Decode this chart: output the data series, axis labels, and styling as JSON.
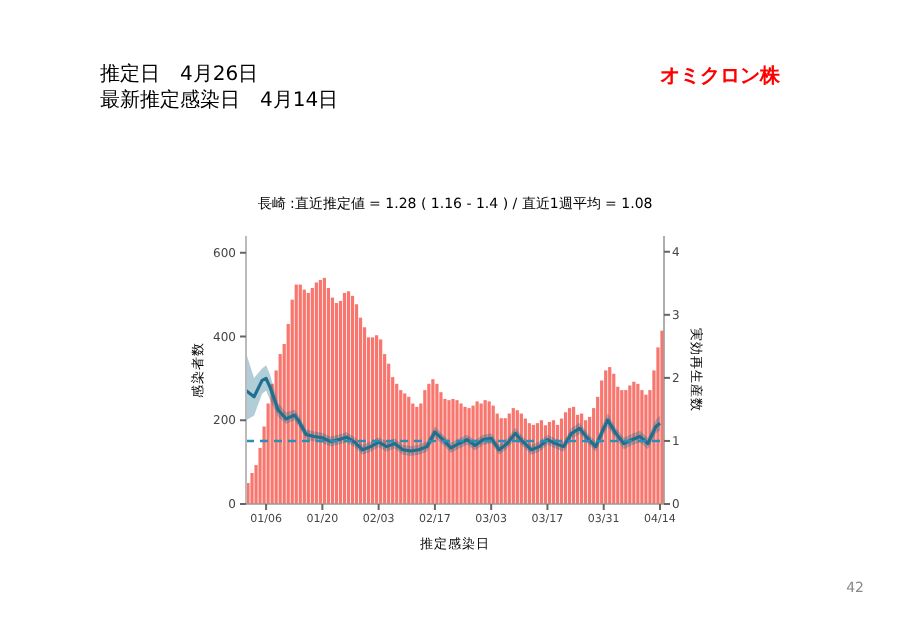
{
  "chart_data": {
    "type": "bar",
    "title": "長崎 :直近推定値 = 1.28 ( 1.16 - 1.4 ) / 直近1週平均 = 1.08",
    "annotations": [
      "推定日　4月26日",
      "最新推定感染日　4月14日",
      "オミクロン株",
      "42"
    ],
    "xlabel": "推定感染日",
    "ylabel": "感染者数",
    "y2label": "実効再生産数",
    "xlim": [
      "--01-01",
      "--04-15"
    ],
    "xticks": [
      {
        "value": "--01-06",
        "label": "01/06"
      },
      {
        "value": "--01-20",
        "label": "01/20"
      },
      {
        "value": "--02-03",
        "label": "02/03"
      },
      {
        "value": "--02-17",
        "label": "02/17"
      },
      {
        "value": "--03-03",
        "label": "03/03"
      },
      {
        "value": "--03-17",
        "label": "03/17"
      },
      {
        "value": "--03-31",
        "label": "03/31"
      },
      {
        "value": "--04-14",
        "label": "04/14"
      }
    ],
    "ylim": [
      0,
      640
    ],
    "yticks": [
      0,
      200,
      400,
      600
    ],
    "y2lim": [
      0,
      4.25
    ],
    "y2ticks": [
      0,
      1,
      2,
      3,
      4
    ],
    "grid": false,
    "ref_lines": [
      {
        "axis": "y2",
        "value": 1,
        "color": "#2a8fb5",
        "line_style": "dashed"
      }
    ],
    "series": [
      {
        "color": "#f8766d",
        "x": [
          "--01-01",
          "--01-02",
          "--01-03",
          "--01-04",
          "--01-05",
          "--01-06",
          "--01-07",
          "--01-08",
          "--01-09",
          "--01-10",
          "--01-11",
          "--01-12",
          "--01-13",
          "--01-14",
          "--01-15",
          "--01-16",
          "--01-17",
          "--01-18",
          "--01-19",
          "--01-20",
          "--01-21",
          "--01-22",
          "--01-23",
          "--01-24",
          "--01-25",
          "--01-26",
          "--01-27",
          "--01-28",
          "--01-29",
          "--01-30",
          "--01-31",
          "--02-01",
          "--02-02",
          "--02-03",
          "--02-04",
          "--02-05",
          "--02-06",
          "--02-07",
          "--02-08",
          "--02-09",
          "--02-10",
          "--02-11",
          "--02-12",
          "--02-13",
          "--02-14",
          "--02-15",
          "--02-16",
          "--02-17",
          "--02-18",
          "--02-19",
          "--02-20",
          "--02-21",
          "--02-22",
          "--02-23",
          "--02-24",
          "--02-25",
          "--02-26",
          "--02-27",
          "--02-28",
          "--03-01",
          "--03-02",
          "--03-03",
          "--03-04",
          "--03-05",
          "--03-06",
          "--03-07",
          "--03-08",
          "--03-09",
          "--03-10",
          "--03-11",
          "--03-12",
          "--03-13",
          "--03-14",
          "--03-15",
          "--03-16",
          "--03-17",
          "--03-18",
          "--03-19",
          "--03-20",
          "--03-21",
          "--03-22",
          "--03-23",
          "--03-24",
          "--03-25",
          "--03-26",
          "--03-27",
          "--03-28",
          "--03-29",
          "--03-30",
          "--03-31",
          "--04-01",
          "--04-02",
          "--04-03",
          "--04-04",
          "--04-05",
          "--04-06",
          "--04-07",
          "--04-08",
          "--04-09",
          "--04-10",
          "--04-11",
          "--04-12",
          "--04-13",
          "--04-14"
        ],
        "values": [
          50,
          74,
          93,
          134,
          185,
          240,
          287,
          319,
          358,
          382,
          430,
          488,
          524,
          524,
          512,
          504,
          516,
          529,
          535,
          540,
          516,
          493,
          480,
          485,
          504,
          508,
          497,
          477,
          445,
          422,
          398,
          398,
          403,
          393,
          358,
          335,
          303,
          287,
          272,
          264,
          256,
          240,
          232,
          240,
          272,
          287,
          298,
          287,
          267,
          251,
          248,
          251,
          248,
          240,
          232,
          229,
          235,
          245,
          240,
          248,
          245,
          235,
          216,
          205,
          205,
          216,
          229,
          224,
          216,
          204,
          193,
          189,
          193,
          200,
          188,
          196,
          200,
          189,
          204,
          219,
          229,
          232,
          213,
          216,
          200,
          208,
          229,
          256,
          295,
          319,
          327,
          311,
          280,
          272,
          272,
          283,
          292,
          287,
          272,
          261,
          272,
          319,
          374,
          414
        ]
      },
      {
        "type": "line",
        "axis": "y2",
        "color": "#1f6f8f",
        "x": [
          "--01-01",
          "--01-03",
          "--01-05",
          "--01-06",
          "--01-07",
          "--01-09",
          "--01-11",
          "--01-13",
          "--01-14",
          "--01-16",
          "--01-18",
          "--01-20",
          "--01-22",
          "--01-24",
          "--01-26",
          "--01-28",
          "--01-30",
          "--02-01",
          "--02-03",
          "--02-05",
          "--02-07",
          "--02-09",
          "--02-11",
          "--02-13",
          "--02-15",
          "--02-17",
          "--02-19",
          "--02-21",
          "--02-23",
          "--02-25",
          "--02-27",
          "--03-01",
          "--03-03",
          "--03-05",
          "--03-07",
          "--03-09",
          "--03-11",
          "--03-13",
          "--03-15",
          "--03-17",
          "--03-19",
          "--03-21",
          "--03-23",
          "--03-25",
          "--03-27",
          "--03-29",
          "--03-31",
          "--04-01",
          "--04-03",
          "--04-05",
          "--04-07",
          "--04-09",
          "--04-11",
          "--04-13",
          "--04-14"
        ],
        "values": [
          1.8,
          1.7,
          1.96,
          1.99,
          1.85,
          1.49,
          1.35,
          1.41,
          1.33,
          1.1,
          1.07,
          1.05,
          0.99,
          1.02,
          1.06,
          0.98,
          0.86,
          0.91,
          0.98,
          0.91,
          0.96,
          0.86,
          0.84,
          0.86,
          0.91,
          1.14,
          1.02,
          0.89,
          0.96,
          1.02,
          0.93,
          1.02,
          1.04,
          0.86,
          0.96,
          1.12,
          0.98,
          0.86,
          0.91,
          1.02,
          0.96,
          0.91,
          1.12,
          1.2,
          1.04,
          0.91,
          1.2,
          1.33,
          1.12,
          0.96,
          1.02,
          1.07,
          0.96,
          1.23,
          1.28
        ],
        "lower": [
          1.33,
          1.4,
          1.75,
          1.8,
          1.65,
          1.38,
          1.27,
          1.33,
          1.24,
          1.02,
          0.99,
          0.97,
          0.91,
          0.94,
          0.98,
          0.9,
          0.78,
          0.83,
          0.9,
          0.83,
          0.88,
          0.78,
          0.76,
          0.78,
          0.83,
          1.05,
          0.94,
          0.81,
          0.88,
          0.94,
          0.85,
          0.94,
          0.96,
          0.78,
          0.88,
          1.03,
          0.9,
          0.78,
          0.83,
          0.94,
          0.88,
          0.83,
          1.03,
          1.11,
          0.96,
          0.83,
          1.1,
          1.22,
          1.03,
          0.87,
          0.93,
          0.98,
          0.87,
          1.12,
          1.16
        ],
        "upper": [
          2.4,
          2.0,
          2.15,
          2.2,
          2.05,
          1.6,
          1.45,
          1.5,
          1.42,
          1.18,
          1.15,
          1.13,
          1.07,
          1.1,
          1.14,
          1.06,
          0.94,
          0.99,
          1.06,
          0.99,
          1.04,
          0.94,
          0.92,
          0.94,
          0.99,
          1.23,
          1.1,
          0.97,
          1.04,
          1.1,
          1.01,
          1.1,
          1.12,
          0.94,
          1.04,
          1.21,
          1.06,
          0.94,
          0.99,
          1.1,
          1.04,
          0.99,
          1.21,
          1.29,
          1.12,
          0.99,
          1.3,
          1.44,
          1.21,
          1.05,
          1.11,
          1.16,
          1.05,
          1.34,
          1.4
        ]
      }
    ]
  }
}
